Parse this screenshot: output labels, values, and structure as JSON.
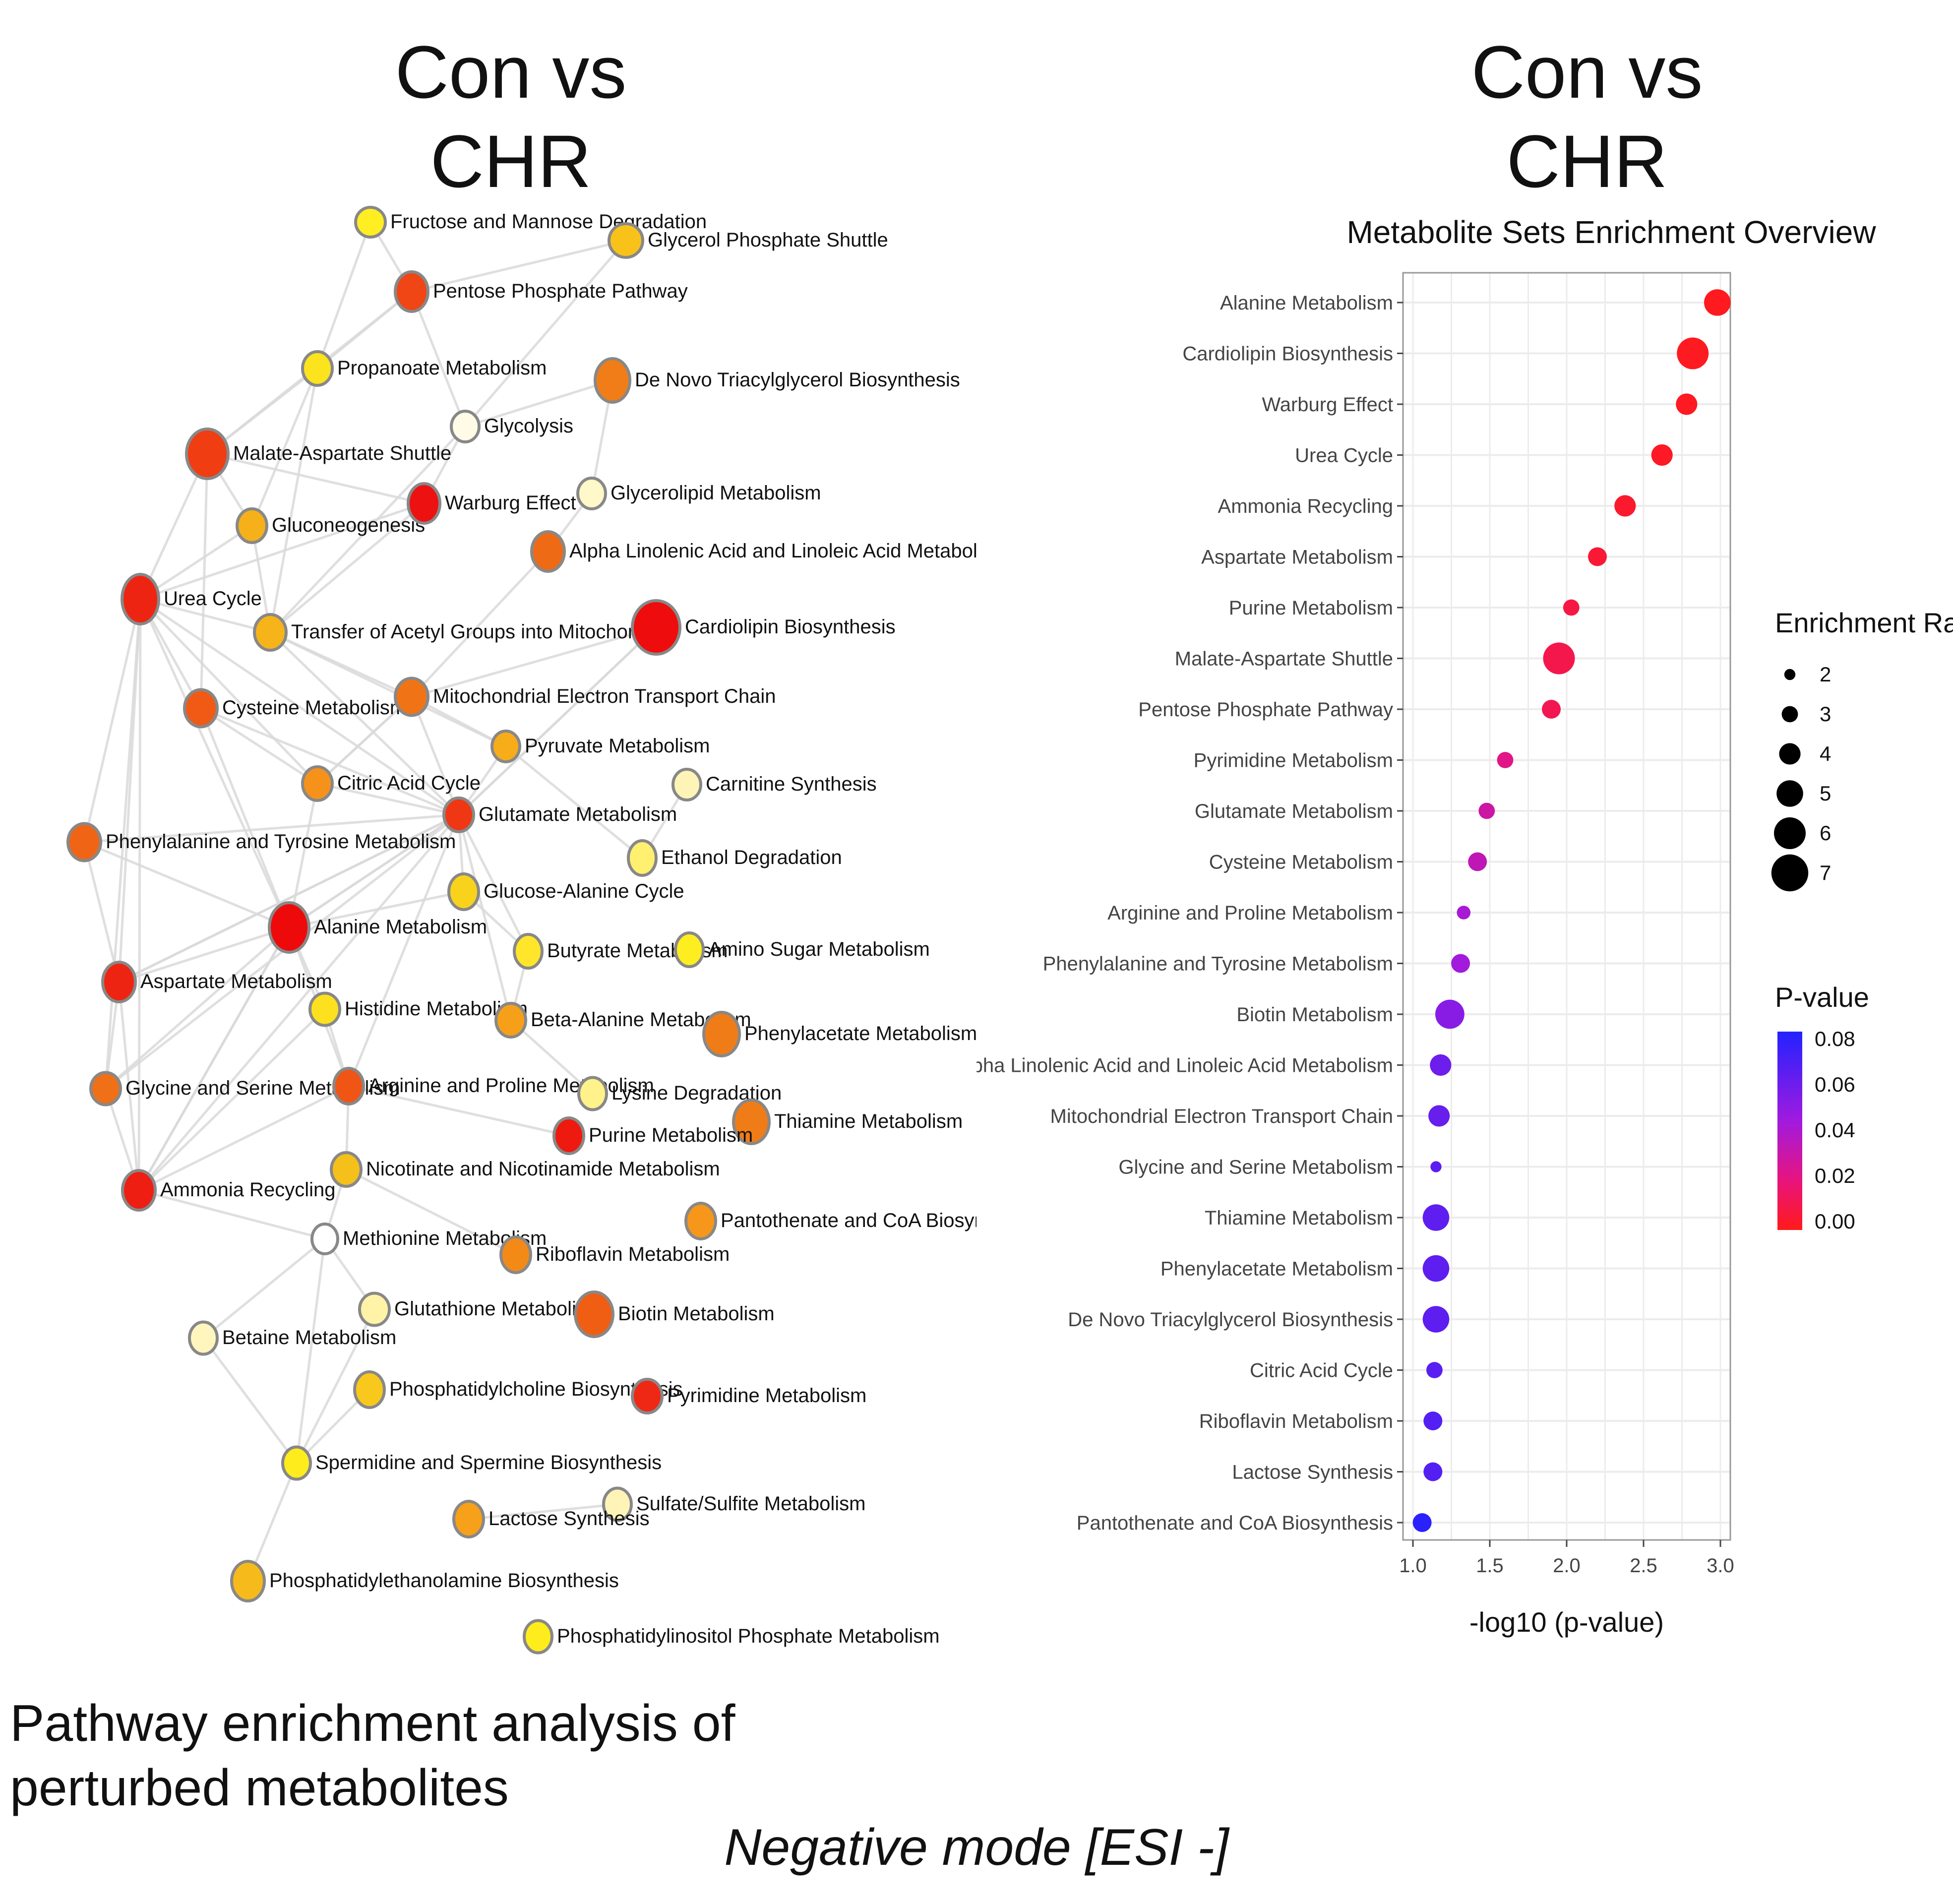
{
  "figure": {
    "left_title": "Con vs CHR",
    "right_title": "Con vs CHR",
    "left_caption": "Pathway enrichment analysis of perturbed metabolites",
    "bottom_caption": "Negative mode [ESI -]"
  },
  "network": {
    "nodes": [
      {
        "label": "Fructose and Mannose Degradation",
        "color": "#ffee22"
      },
      {
        "label": "Glycerol Phosphate Shuttle",
        "color": "#f8c21a"
      },
      {
        "label": "Pentose Phosphate Pathway",
        "color": "#f04515"
      },
      {
        "label": "Propanoate Metabolism",
        "color": "#fbe31d"
      },
      {
        "label": "De Novo Triacylglycerol Biosynthesis",
        "color": "#f07d18"
      },
      {
        "label": "Glycolysis",
        "color": "#fffbe6"
      },
      {
        "label": "Malate-Aspartate Shuttle",
        "color": "#f03d12"
      },
      {
        "label": "Gluconeogenesis",
        "color": "#f6b01a"
      },
      {
        "label": "Warburg Effect",
        "color": "#ee1111"
      },
      {
        "label": "Glycerolipid Metabolism",
        "color": "#fff8c8"
      },
      {
        "label": "Alpha Linolenic Acid and Linoleic Acid Metabolism",
        "color": "#ef6a15"
      },
      {
        "label": "Urea Cycle",
        "color": "#ee2412"
      },
      {
        "label": "Transfer of Acetyl Groups into Mitochondria",
        "color": "#f6b41a"
      },
      {
        "label": "Cardiolipin Biosynthesis",
        "color": "#ee0c0c"
      },
      {
        "label": "Cysteine Metabolism",
        "color": "#f05a15"
      },
      {
        "label": "Mitochondrial Electron Transport Chain",
        "color": "#f07416"
      },
      {
        "label": "Pyruvate Metabolism",
        "color": "#f7ac1a"
      },
      {
        "label": "Carnitine Synthesis",
        "color": "#fff4b8"
      },
      {
        "label": "Citric Acid Cycle",
        "color": "#f6921a"
      },
      {
        "label": "Glutamate Metabolism",
        "color": "#ef3713"
      },
      {
        "label": "Phenylalanine and Tyrosine Metabolism",
        "color": "#f06416"
      },
      {
        "label": "Ethanol Degradation",
        "color": "#fff070"
      },
      {
        "label": "Glucose-Alanine Cycle",
        "color": "#f9d21c"
      },
      {
        "label": "Alanine Metabolism",
        "color": "#ee0a0a"
      },
      {
        "label": "Butyrate Metabolism",
        "color": "#ffe62a"
      },
      {
        "label": "Amino Sugar Metabolism",
        "color": "#ffee1f"
      },
      {
        "label": "Aspartate Metabolism",
        "color": "#ee2412"
      },
      {
        "label": "Histidine Metabolism",
        "color": "#fde01e"
      },
      {
        "label": "Beta-Alanine Metabolism",
        "color": "#f6a01a"
      },
      {
        "label": "Phenylacetate Metabolism",
        "color": "#f07c18"
      },
      {
        "label": "Glycine and Serine Metabolism",
        "color": "#f07018"
      },
      {
        "label": "Arginine and Proline Metabolism",
        "color": "#f05515"
      },
      {
        "label": "Lysine Degradation",
        "color": "#fff28a"
      },
      {
        "label": "Thiamine Metabolism",
        "color": "#f07c18"
      },
      {
        "label": "Purine Metabolism",
        "color": "#ee1a10"
      },
      {
        "label": "Ammonia Recycling",
        "color": "#ee1e12"
      },
      {
        "label": "Nicotinate and Nicotinamide Metabolism",
        "color": "#f6c01a"
      },
      {
        "label": "Methionine Metabolism",
        "color": "#ffffff"
      },
      {
        "label": "Pantothenate and CoA Biosynthesis",
        "color": "#f6961a"
      },
      {
        "label": "Riboflavin Metabolism",
        "color": "#f38a18"
      },
      {
        "label": "Glutathione Metabolism",
        "color": "#fff3a8"
      },
      {
        "label": "Biotin Metabolism",
        "color": "#f05e14"
      },
      {
        "label": "Betaine Metabolism",
        "color": "#fff6be"
      },
      {
        "label": "Phosphatidylcholine Biosynthesis",
        "color": "#f8c81c"
      },
      {
        "label": "Pyrimidine Metabolism",
        "color": "#ee2814"
      },
      {
        "label": "Spermidine and Spermine Biosynthesis",
        "color": "#ffec1c"
      },
      {
        "label": "Sulfate/Sulfite Metabolism",
        "color": "#fff4b8"
      },
      {
        "label": "Lactose Synthesis",
        "color": "#f7a01a"
      },
      {
        "label": "Phosphatidylethanolamine Biosynthesis",
        "color": "#f6ba1a"
      },
      {
        "label": "Phosphatidylinositol Phosphate Metabolism",
        "color": "#ffec1c"
      }
    ]
  },
  "chart_data": {
    "type": "scatter",
    "title": "Metabolite Sets Enrichment Overview",
    "xlabel": "-log10 (p-value)",
    "ylabel": "",
    "xlim": [
      1.0,
      3.0
    ],
    "x_ticks": [
      "1.0",
      "1.5",
      "2.0",
      "2.5",
      "3.0"
    ],
    "grid": true,
    "legend_placement": "right",
    "size_legend": {
      "title": "Enrichment Ratio",
      "values": [
        "2",
        "3",
        "4",
        "5",
        "6",
        "7"
      ]
    },
    "color_legend": {
      "title": "P-value",
      "ticks": [
        "0.08",
        "0.06",
        "0.04",
        "0.02",
        "0.00"
      ],
      "low_color": "#ff1a1a",
      "high_color": "#2222ff"
    },
    "categories": [
      "Alanine Metabolism",
      "Cardiolipin Biosynthesis",
      "Warburg Effect",
      "Urea Cycle",
      "Ammonia Recycling",
      "Aspartate Metabolism",
      "Purine Metabolism",
      "Malate-Aspartate Shuttle",
      "Pentose Phosphate Pathway",
      "Pyrimidine Metabolism",
      "Glutamate Metabolism",
      "Cysteine Metabolism",
      "Arginine and Proline Metabolism",
      "Phenylalanine and Tyrosine Metabolism",
      "Biotin Metabolism",
      "Alpha Linolenic Acid and Linoleic Acid Metabolism",
      "Mitochondrial Electron Transport Chain",
      "Glycine and Serine Metabolism",
      "Thiamine Metabolism",
      "Phenylacetate Metabolism",
      "De Novo Triacylglycerol Biosynthesis",
      "Citric Acid Cycle",
      "Riboflavin Metabolism",
      "Lactose Synthesis",
      "Pantothenate and CoA Biosynthesis"
    ],
    "x": [
      2.98,
      2.82,
      2.78,
      2.62,
      2.38,
      2.2,
      2.03,
      1.95,
      1.9,
      1.6,
      1.48,
      1.42,
      1.33,
      1.31,
      1.24,
      1.18,
      1.17,
      1.15,
      1.15,
      1.15,
      1.15,
      1.14,
      1.13,
      1.13,
      1.06
    ],
    "enrichment_ratio": [
      5,
      6,
      4,
      4,
      4,
      3.5,
      3,
      6,
      3.5,
      3,
      3,
      3.5,
      2.5,
      3.5,
      5.5,
      4,
      4,
      2,
      5,
      5,
      5,
      3,
      3.5,
      3.5,
      3.5
    ],
    "p_value": [
      0.001,
      0.0015,
      0.0017,
      0.0024,
      0.0042,
      0.0063,
      0.0093,
      0.0112,
      0.0126,
      0.0251,
      0.0331,
      0.038,
      0.0468,
      0.049,
      0.0575,
      0.066,
      0.0676,
      0.0708,
      0.0708,
      0.0708,
      0.0708,
      0.0724,
      0.0741,
      0.0741,
      0.0871
    ]
  }
}
